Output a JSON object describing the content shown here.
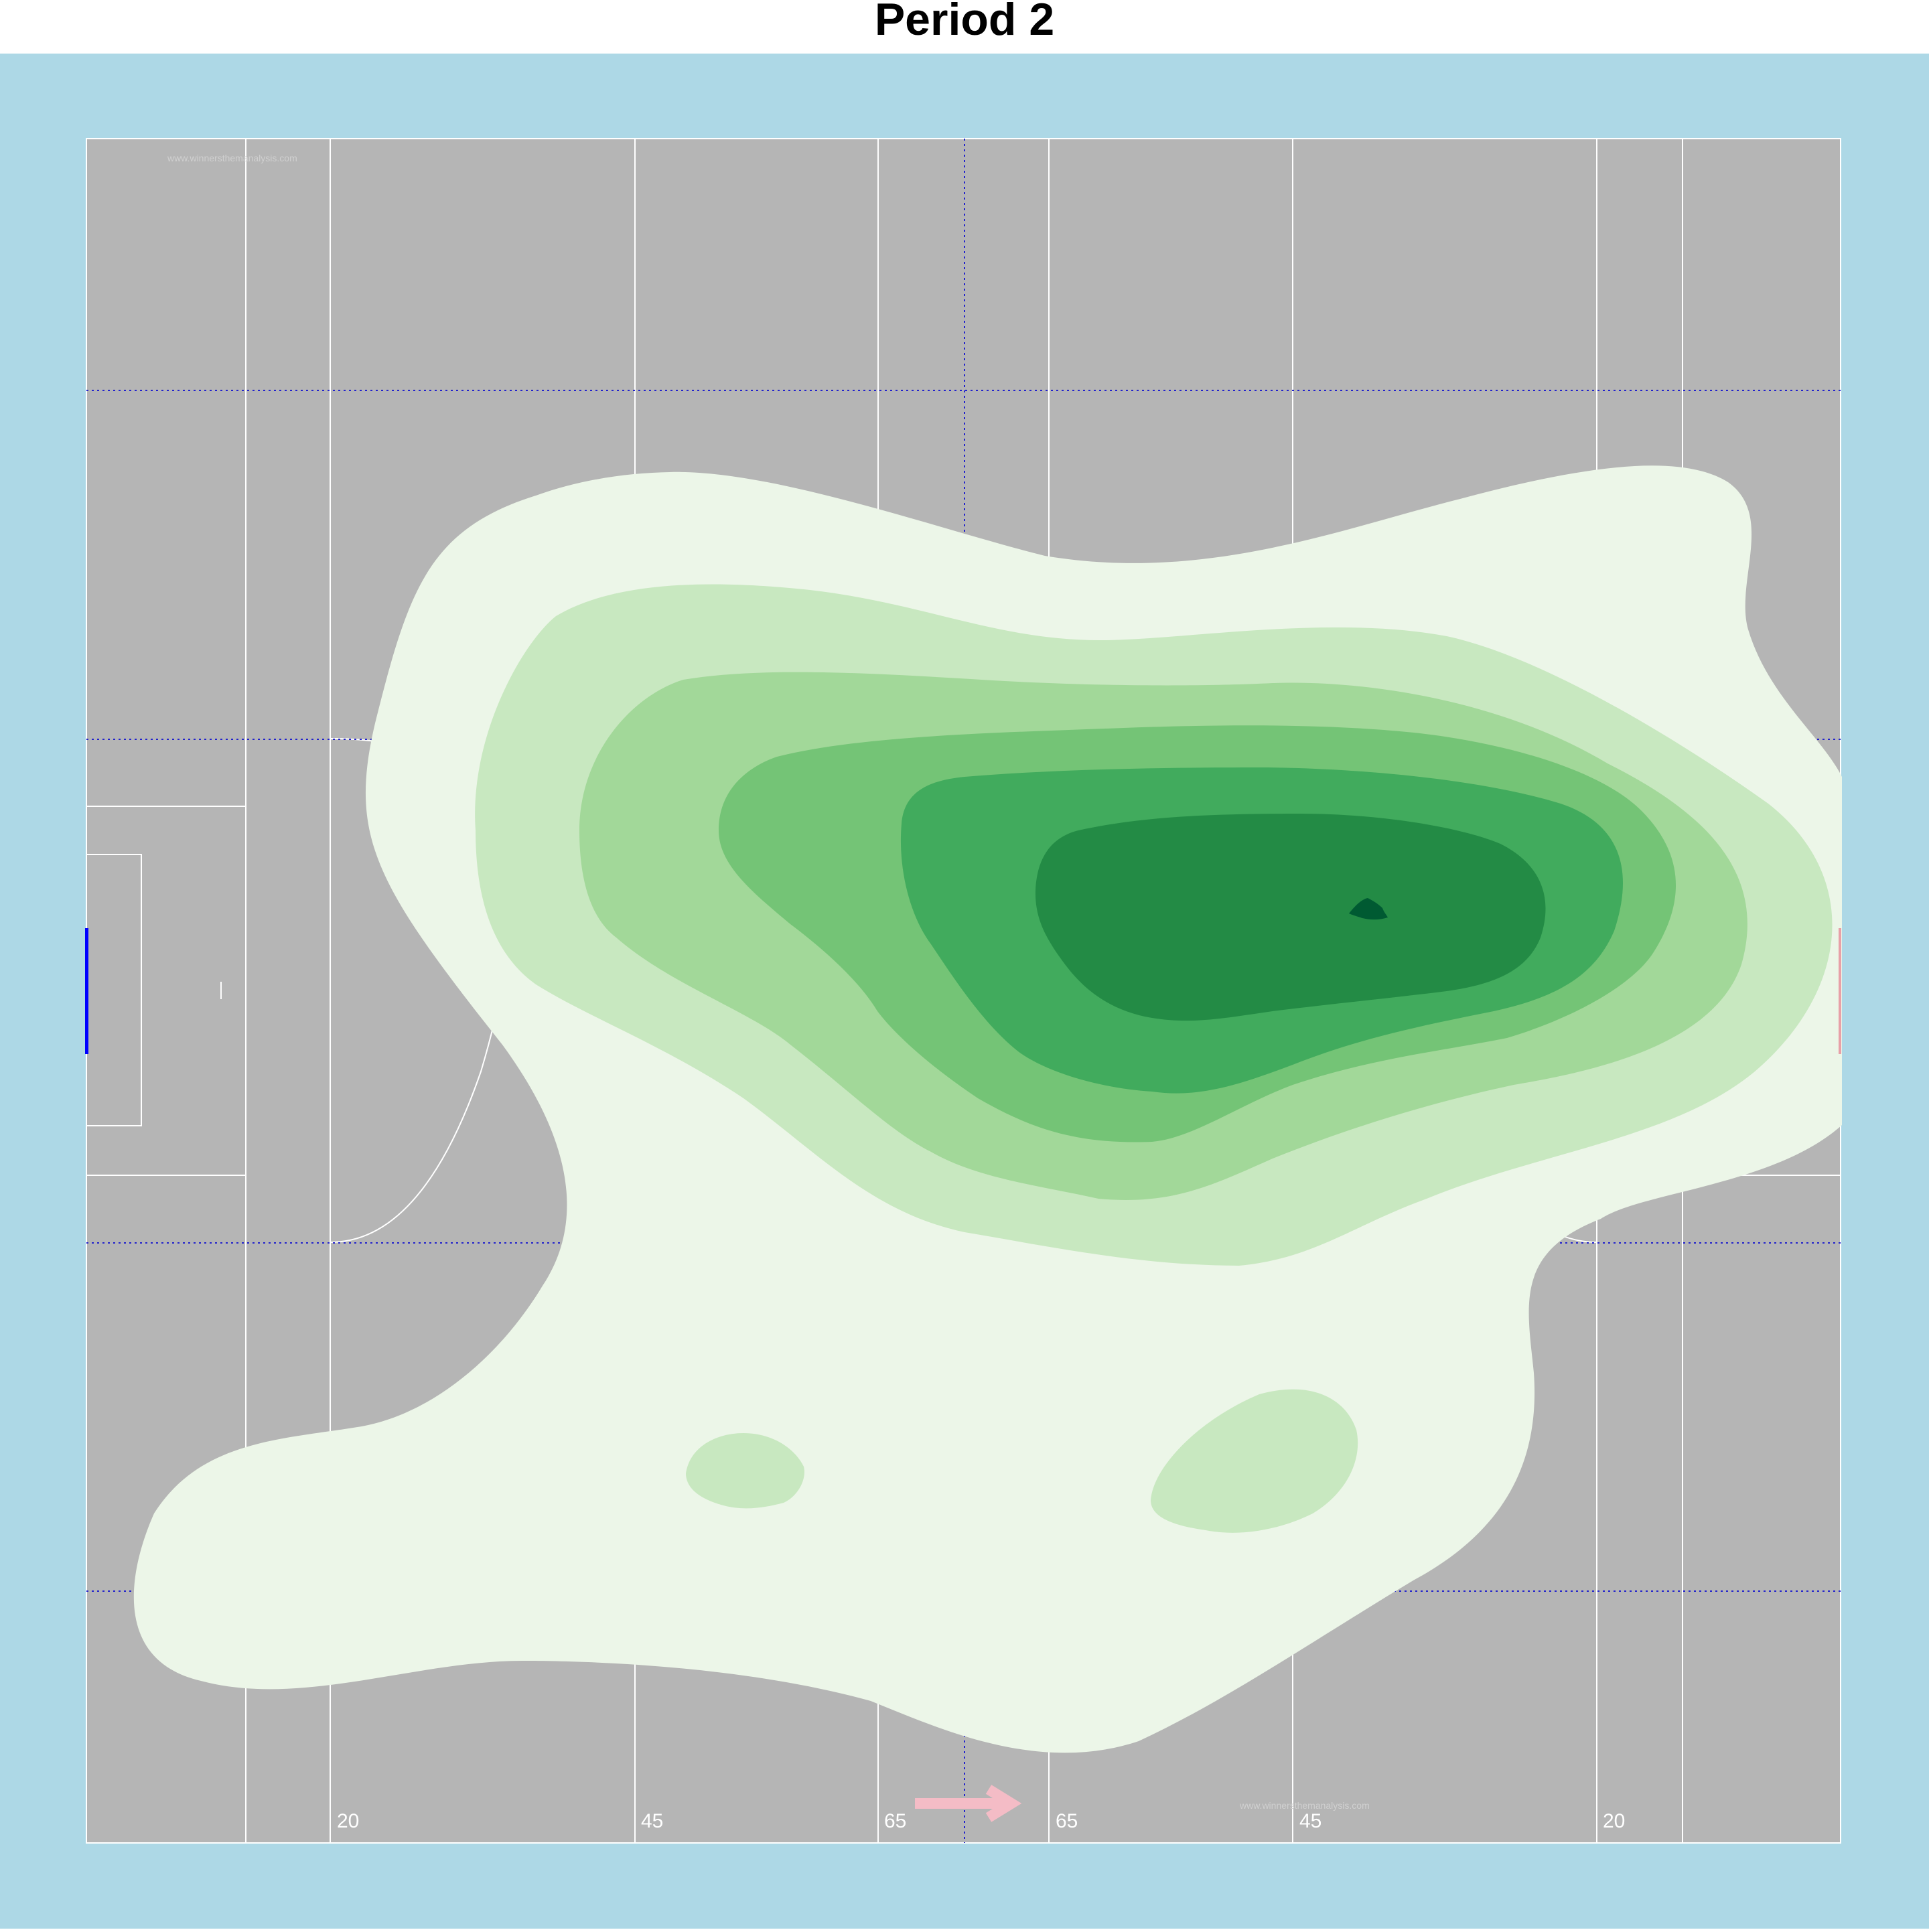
{
  "title": "Period 2",
  "colors": {
    "background": "#add8e6",
    "pitch": "#b5b5b5",
    "lines": "#ffffff",
    "zone_lines": "#2222cc",
    "goal_left": "#0000ff",
    "goal_right": "#e8a0a8",
    "arrow": "#f4bcc6",
    "density": [
      "#ecf6e8",
      "#c8e8c0",
      "#a2d899",
      "#74c476",
      "#41ab5d",
      "#238b45",
      "#005a32"
    ]
  },
  "watermark": "www.winnersthemanalysis.com",
  "direction_icon": "arrow-right-icon",
  "chart_data": {
    "type": "heatmap",
    "title": "Period 2",
    "xlabel": "",
    "ylabel": "",
    "x_tick_labels": [
      "20",
      "45",
      "65",
      "65",
      "45",
      "20"
    ],
    "pitch": {
      "length_m": 145,
      "width_m": 90
    },
    "zones": {
      "vertical_divider_at_m": 72.5,
      "horizontal_dividers_at_m": [
        15,
        34,
        56,
        75
      ]
    },
    "direction_of_play": "right",
    "density_levels": 7,
    "density_peak_m": [
      106,
      44
    ],
    "secondary_hotspots_m": [
      [
        54,
        23
      ],
      [
        96,
        25
      ]
    ],
    "grid": false
  }
}
